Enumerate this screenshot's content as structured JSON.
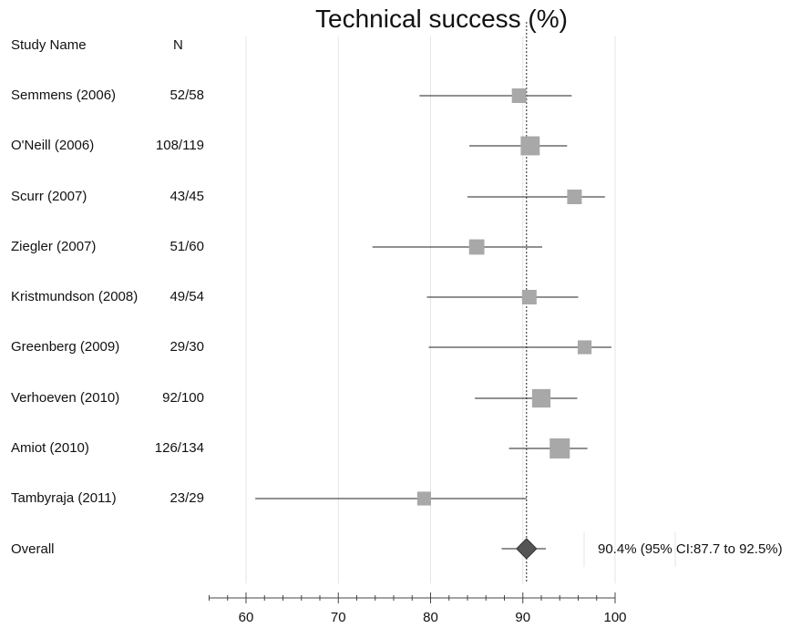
{
  "chart_data": {
    "type": "forest",
    "title": "Technical success (%)",
    "columns": {
      "study": "Study Name",
      "n": "N"
    },
    "studies": [
      {
        "name": "Semmens (2006)",
        "n": "52/58",
        "estimate": 89.6,
        "ci": [
          78.8,
          95.3
        ],
        "weight": 1.0
      },
      {
        "name": "O'Neill (2006)",
        "n": "108/119",
        "estimate": 90.8,
        "ci": [
          84.2,
          94.8
        ],
        "weight": 1.7
      },
      {
        "name": "Scurr (2007)",
        "n": "43/45",
        "estimate": 95.6,
        "ci": [
          84.0,
          98.9
        ],
        "weight": 1.0
      },
      {
        "name": "Ziegler (2007)",
        "n": "51/60",
        "estimate": 85.0,
        "ci": [
          73.7,
          92.1
        ],
        "weight": 1.1
      },
      {
        "name": "Kristmundson (2008)",
        "n": "49/54",
        "estimate": 90.7,
        "ci": [
          79.6,
          96.0
        ],
        "weight": 1.0
      },
      {
        "name": "Greenberg (2009)",
        "n": "29/30",
        "estimate": 96.7,
        "ci": [
          79.8,
          99.6
        ],
        "weight": 0.9
      },
      {
        "name": "Verhoeven (2010)",
        "n": "92/100",
        "estimate": 92.0,
        "ci": [
          84.8,
          95.9
        ],
        "weight": 1.6
      },
      {
        "name": "Amiot (2010)",
        "n": "126/134",
        "estimate": 94.0,
        "ci": [
          88.5,
          97.0
        ],
        "weight": 1.9
      },
      {
        "name": "Tambyraja (2011)",
        "n": "23/29",
        "estimate": 79.3,
        "ci": [
          61.0,
          90.4
        ],
        "weight": 0.9
      }
    ],
    "overall": {
      "label": "Overall",
      "estimate": 90.4,
      "ci": [
        87.7,
        92.5
      ],
      "text": "90.4% (95% CI:87.7 to 92.5%)"
    },
    "xaxis": {
      "range": [
        56,
        100
      ],
      "ticks": [
        60,
        70,
        80,
        90,
        100
      ],
      "tick_labels": [
        "60",
        "70",
        "80",
        "90",
        "100"
      ],
      "minor_step": 2
    },
    "grid": true,
    "reference_line": 90.4,
    "colors": {
      "box": "#a8a8a8",
      "diamond": "#555555",
      "line": "#222222",
      "grid": "#e6e6e6"
    }
  }
}
